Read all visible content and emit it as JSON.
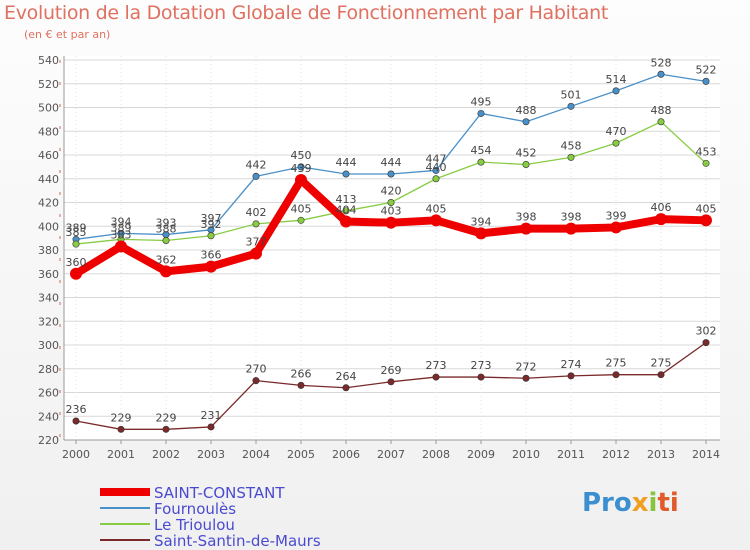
{
  "title": "Evolution de la Dotation Globale de Fonctionnement par Habitant",
  "subtitle": "(en € et par an)",
  "logo": {
    "part1": "Pro",
    "part2": "x",
    "part3": "i",
    "part4": "ti"
  },
  "colors": {
    "title": "#e07060",
    "axis_text": "#555555",
    "grid": "#d8d8d8",
    "axis_line": "#999999"
  },
  "chart_data": {
    "type": "line",
    "title": "Evolution de la Dotation Globale de Fonctionnement par Habitant",
    "ylabel": "(en € et par an)",
    "xlabel": "",
    "ylim": [
      220,
      540
    ],
    "yticks": [
      220,
      240,
      260,
      280,
      300,
      320,
      340,
      360,
      380,
      400,
      420,
      440,
      460,
      480,
      500,
      520,
      540
    ],
    "x": [
      2000,
      2001,
      2002,
      2003,
      2004,
      2005,
      2006,
      2007,
      2008,
      2009,
      2010,
      2011,
      2012,
      2013,
      2014
    ],
    "legend_position": "bottom-left",
    "series": [
      {
        "name": "Fournoulès",
        "color": "#4a90c8",
        "values": [
          389,
          394,
          393,
          397,
          442,
          450,
          444,
          444,
          447,
          495,
          488,
          501,
          514,
          528,
          522
        ],
        "labels": [
          "389",
          "394",
          "393",
          "397",
          "442",
          "450",
          "444",
          "444",
          "447",
          "495",
          "488",
          "501",
          "514",
          "528",
          "522"
        ]
      },
      {
        "name": "Le Trioulou",
        "color": "#88cc44",
        "values": [
          385,
          389,
          388,
          392,
          402,
          405,
          413,
          420,
          440,
          454,
          452,
          458,
          470,
          488,
          453
        ],
        "labels": [
          "385",
          "389",
          "388",
          "392",
          "402",
          "405",
          "413",
          "420",
          "440",
          "454",
          "452",
          "458",
          "470",
          "488",
          "453"
        ]
      },
      {
        "name": "Saint-Santin-de-Maurs",
        "color": "#7a2a2a",
        "values": [
          236,
          229,
          229,
          231,
          270,
          266,
          264,
          269,
          273,
          273,
          272,
          274,
          275,
          275,
          302
        ],
        "labels": [
          "236",
          "229",
          "229",
          "231",
          "270",
          "266",
          "264",
          "269",
          "273",
          "273",
          "272",
          "274",
          "275",
          "275",
          "302"
        ]
      },
      {
        "name": "SAINT-CONSTANT",
        "color": "#ee0000",
        "values": [
          360,
          383,
          362,
          366,
          377,
          439,
          404,
          403,
          405,
          394,
          398,
          398,
          399,
          406,
          405
        ],
        "labels": [
          "360",
          "383",
          "362",
          "366",
          "377",
          "439",
          "404",
          "403",
          "405",
          "394",
          "398",
          "398",
          "399",
          "406",
          "405"
        ]
      }
    ],
    "legend_order": [
      "SAINT-CONSTANT",
      "Fournoulès",
      "Le Trioulou",
      "Saint-Santin-de-Maurs"
    ]
  }
}
